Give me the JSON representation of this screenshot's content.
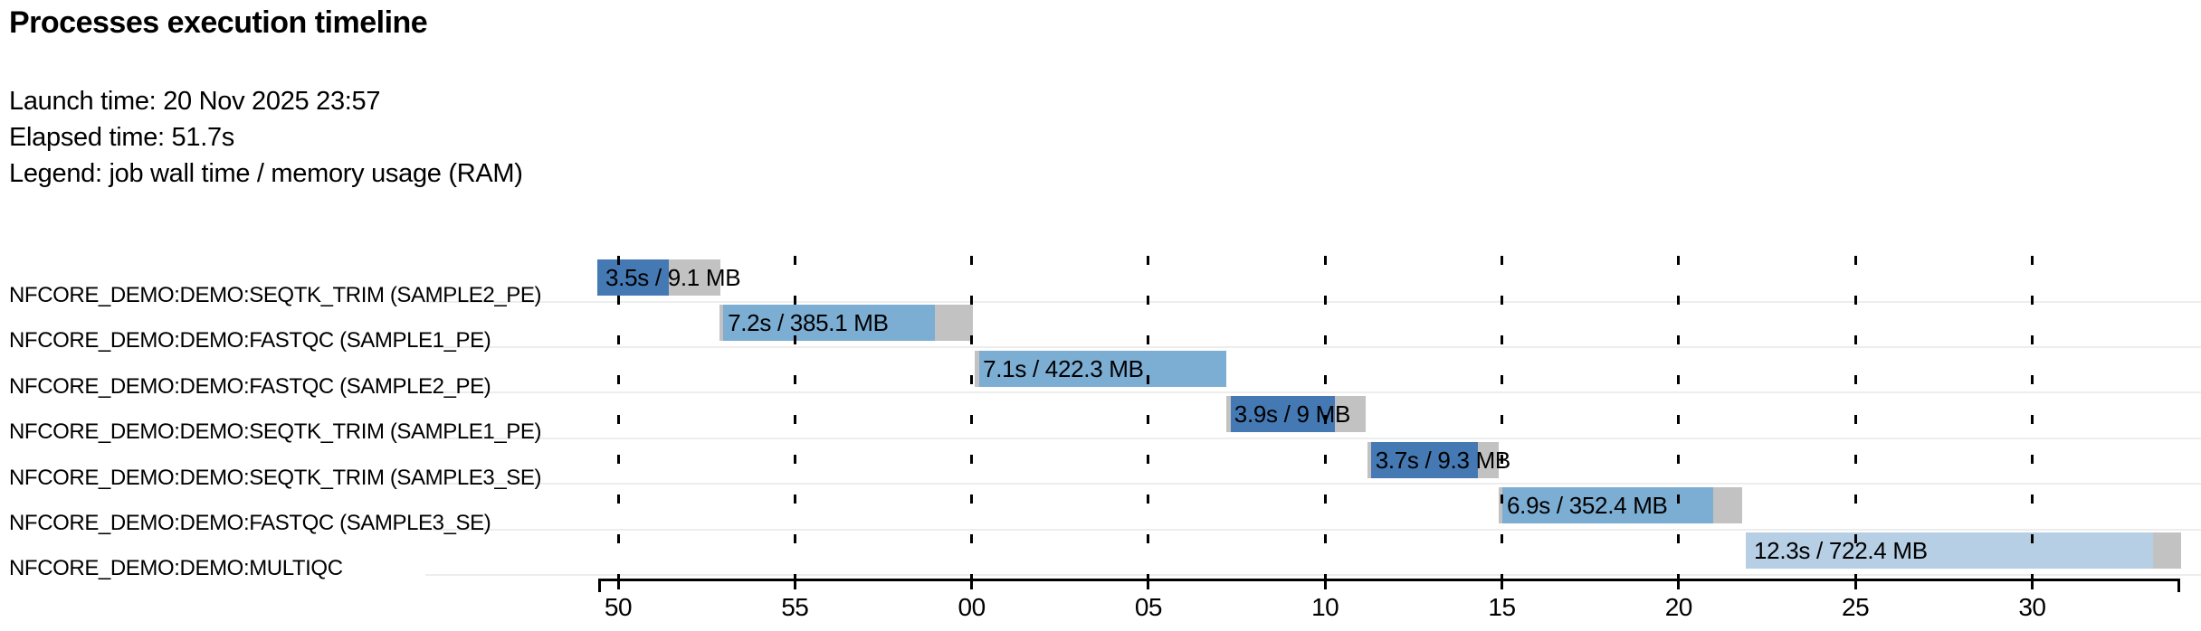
{
  "header": {
    "title": "Processes execution timeline",
    "launch_line": "Launch time: 20 Nov 2025 23:57",
    "elapsed_line": "Elapsed time: 51.7s",
    "legend_line": "Legend: job wall time / memory usage (RAM)"
  },
  "colors": {
    "seqtk_trim": "#4579b4",
    "fastqc": "#7cadd3",
    "multiqc": "#b7cfe4",
    "overhead_gray": "#c2c2c2",
    "separator": "#ededed",
    "axis": "#000000"
  },
  "chart_data": {
    "type": "bar",
    "variant": "horizontal-gantt-timeline",
    "title": "Processes execution timeline",
    "xlabel": "",
    "ylabel": "",
    "grid": "dashed-vertical",
    "legend_position": "none",
    "x_units": "seconds (mm ticks wrap at minute boundary)",
    "axis": {
      "start_s": 49.44,
      "end_s": 94.18,
      "tick_interval_s": 5,
      "ticks": [
        {
          "t": 50,
          "label": "50"
        },
        {
          "t": 55,
          "label": "55"
        },
        {
          "t": 60,
          "label": "00"
        },
        {
          "t": 65,
          "label": "05"
        },
        {
          "t": 70,
          "label": "10"
        },
        {
          "t": 75,
          "label": "15"
        },
        {
          "t": 80,
          "label": "20"
        },
        {
          "t": 85,
          "label": "25"
        },
        {
          "t": 90,
          "label": "30"
        }
      ]
    },
    "tasks": [
      {
        "name": "NFCORE_DEMO:DEMO:SEQTK_TRIM (SAMPLE2_PE)",
        "label": "3.5s / 9.1 MB",
        "wall_time_s": 3.5,
        "memory": "9.1 MB",
        "color_key": "seqtk_trim",
        "start_s": 49.41,
        "run_start_s": 49.41,
        "run_end_s": 51.43,
        "end_s": 52.89
      },
      {
        "name": "NFCORE_DEMO:DEMO:FASTQC (SAMPLE1_PE)",
        "label": "7.2s / 385.1 MB",
        "wall_time_s": 7.2,
        "memory": "385.1 MB",
        "color_key": "fastqc",
        "start_s": 52.87,
        "run_start_s": 52.97,
        "run_end_s": 58.96,
        "end_s": 60.04
      },
      {
        "name": "NFCORE_DEMO:DEMO:FASTQC (SAMPLE2_PE)",
        "label": "7.1s / 422.3 MB",
        "wall_time_s": 7.1,
        "memory": "422.3 MB",
        "color_key": "fastqc",
        "start_s": 60.09,
        "run_start_s": 60.21,
        "run_end_s": 67.2,
        "end_s": 67.2
      },
      {
        "name": "NFCORE_DEMO:DEMO:SEQTK_TRIM (SAMPLE1_PE)",
        "label": "3.9s / 9 MB",
        "wall_time_s": 3.9,
        "memory": "9 MB",
        "color_key": "seqtk_trim",
        "start_s": 67.2,
        "run_start_s": 67.33,
        "run_end_s": 70.27,
        "end_s": 71.14
      },
      {
        "name": "NFCORE_DEMO:DEMO:SEQTK_TRIM (SAMPLE3_SE)",
        "label": "3.7s / 9.3 MB",
        "wall_time_s": 3.7,
        "memory": "9.3 MB",
        "color_key": "seqtk_trim",
        "start_s": 71.19,
        "run_start_s": 71.3,
        "run_end_s": 74.32,
        "end_s": 74.91
      },
      {
        "name": "NFCORE_DEMO:DEMO:FASTQC (SAMPLE3_SE)",
        "label": "6.9s / 352.4 MB",
        "wall_time_s": 6.9,
        "memory": "352.4 MB",
        "color_key": "fastqc",
        "start_s": 74.91,
        "run_start_s": 75.01,
        "run_end_s": 80.98,
        "end_s": 81.79
      },
      {
        "name": "NFCORE_DEMO:DEMO:MULTIQC",
        "label": "12.3s / 722.4 MB",
        "wall_time_s": 12.3,
        "memory": "722.4 MB",
        "color_key": "multiqc",
        "start_s": 81.9,
        "run_start_s": 81.9,
        "run_end_s": 93.41,
        "end_s": 94.21
      }
    ]
  }
}
